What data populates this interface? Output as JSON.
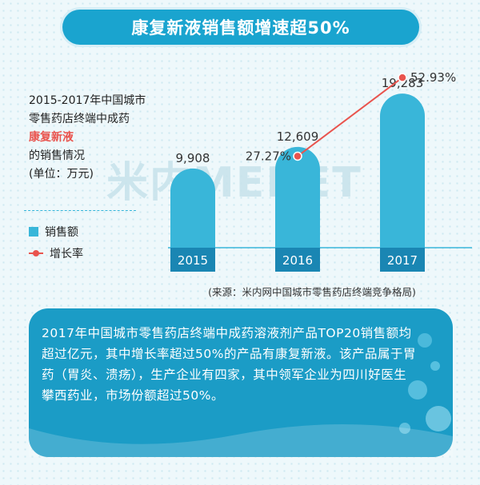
{
  "banner": {
    "title": "康复新液销售额增速超50%"
  },
  "description": {
    "line1": "2015-2017年中国城市",
    "line2": "零售药店终端中成药",
    "highlight": "康复新液",
    "line3": "的销售情况",
    "line4": "(单位：万元)"
  },
  "legend": {
    "bars": "销售额",
    "line": "增长率"
  },
  "source": "(来源：米内网中国城市零售药店终端竞争格局)",
  "watermark": "米内MENET",
  "note": {
    "text": "2017年中国城市零售药店终端中成药溶液剂产品TOP20销售额均超过亿元，其中增长率超过50%的产品有康复新液。该产品属于胃药（胃炎、溃疡），生产企业有四家，其中领军企业为四川好医生攀西药业，市场份额超过50%。"
  },
  "colors": {
    "bar": "#39b6d9",
    "barLabel": "#1a86b3",
    "line": "#e9544e",
    "banner": "#1aa4cf",
    "note": "#1b9cc6"
  },
  "chart_data": {
    "type": "bar",
    "categories": [
      "2015",
      "2016",
      "2017"
    ],
    "series": [
      {
        "name": "销售额",
        "values": [
          9908,
          12609,
          19283
        ]
      },
      {
        "name": "增长率",
        "values": [
          null,
          27.27,
          52.93
        ]
      }
    ],
    "bar_labels": [
      "9,908",
      "12,609",
      "19,283"
    ],
    "line_labels": [
      "",
      "27.27%",
      "52.93%"
    ],
    "ylim": [
      0,
      20000
    ],
    "line_ylim": [
      0,
      60
    ],
    "legend": "left"
  }
}
